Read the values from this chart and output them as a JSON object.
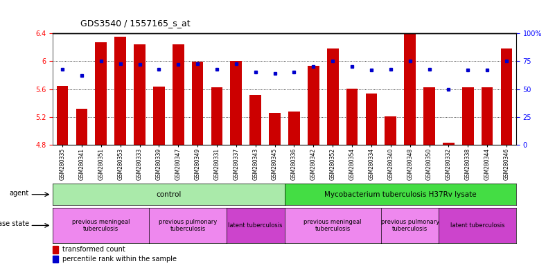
{
  "title": "GDS3540 / 1557165_s_at",
  "samples": [
    "GSM280335",
    "GSM280341",
    "GSM280351",
    "GSM280353",
    "GSM280333",
    "GSM280339",
    "GSM280347",
    "GSM280349",
    "GSM280331",
    "GSM280337",
    "GSM280343",
    "GSM280345",
    "GSM280336",
    "GSM280342",
    "GSM280352",
    "GSM280354",
    "GSM280334",
    "GSM280340",
    "GSM280348",
    "GSM280350",
    "GSM280332",
    "GSM280338",
    "GSM280344",
    "GSM280346"
  ],
  "bar_values": [
    5.65,
    5.32,
    6.27,
    6.35,
    6.24,
    5.64,
    6.24,
    5.99,
    5.63,
    6.0,
    5.52,
    5.26,
    5.28,
    5.93,
    6.18,
    5.61,
    5.54,
    5.21,
    6.4,
    5.63,
    4.83,
    5.63,
    5.63,
    6.18
  ],
  "percentile_values": [
    68,
    62,
    75,
    73,
    72,
    68,
    72,
    73,
    68,
    73,
    65,
    64,
    65,
    70,
    75,
    70,
    67,
    68,
    75,
    68,
    50,
    67,
    67,
    75
  ],
  "bar_color": "#cc0000",
  "pct_color": "#0000cc",
  "ylim": [
    4.8,
    6.4
  ],
  "yticks_left": [
    4.8,
    5.2,
    5.6,
    6.0,
    6.4
  ],
  "ytick_labels_left": [
    "4.8",
    "5.2",
    "5.6",
    "6",
    "6.4"
  ],
  "yticks_right_pct": [
    0,
    25,
    50,
    75,
    100
  ],
  "ytick_labels_right": [
    "0",
    "25",
    "50",
    "75",
    "100%"
  ],
  "agent_groups": [
    {
      "label": "control",
      "start": 0,
      "end": 12,
      "color": "#aaeaaa"
    },
    {
      "label": "Mycobacterium tuberculosis H37Rv lysate",
      "start": 12,
      "end": 24,
      "color": "#44dd44"
    }
  ],
  "disease_groups": [
    {
      "label": "previous meningeal\ntuberculosis",
      "start": 0,
      "end": 5,
      "color": "#ee88ee"
    },
    {
      "label": "previous pulmonary\ntuberculosis",
      "start": 5,
      "end": 9,
      "color": "#ee88ee"
    },
    {
      "label": "latent tuberculosis",
      "start": 9,
      "end": 12,
      "color": "#cc44cc"
    },
    {
      "label": "previous meningeal\ntuberculosis",
      "start": 12,
      "end": 17,
      "color": "#ee88ee"
    },
    {
      "label": "previous pulmonary\ntuberculosis",
      "start": 17,
      "end": 20,
      "color": "#ee88ee"
    },
    {
      "label": "latent tuberculosis",
      "start": 20,
      "end": 24,
      "color": "#cc44cc"
    }
  ],
  "legend_labels": [
    "transformed count",
    "percentile rank within the sample"
  ],
  "legend_colors": [
    "#cc0000",
    "#0000cc"
  ],
  "base_value": 4.8,
  "grid_yticks": [
    5.2,
    5.6,
    6.0
  ]
}
